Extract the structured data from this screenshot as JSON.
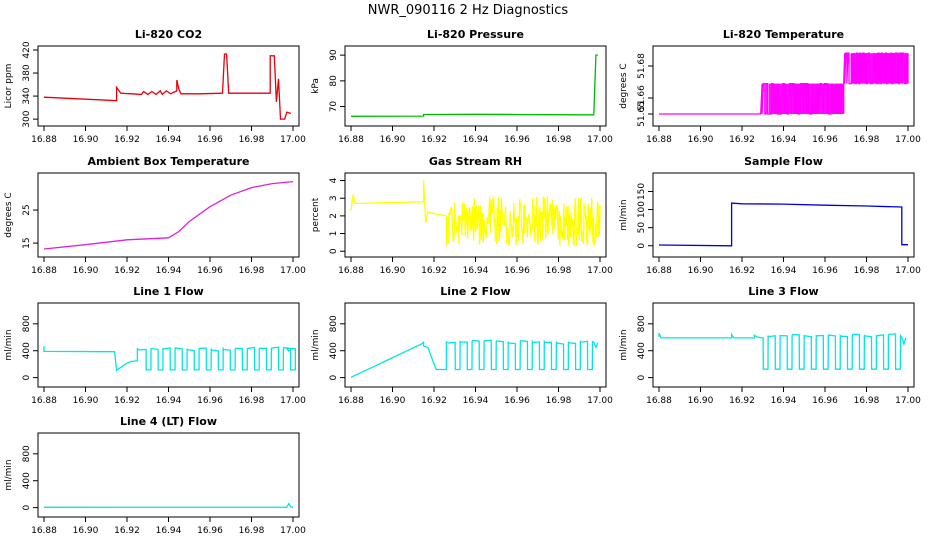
{
  "figure_title": "NWR_090116  2 Hz Diagnostics",
  "chart_data": [
    {
      "type": "line",
      "title": "Li-820 CO2",
      "xlabel": "",
      "ylabel": "Licor ppm",
      "color": "#e8000b",
      "xlim": [
        16.88,
        17.0
      ],
      "ylim": [
        295,
        420
      ],
      "xticks": [
        16.88,
        16.9,
        16.92,
        16.94,
        16.96,
        16.98,
        17.0
      ],
      "xtick_labels": [
        "16.88",
        "16.90",
        "16.92",
        "16.94",
        "16.96",
        "16.98",
        "17.00"
      ],
      "yticks": [
        300,
        340,
        380,
        420
      ],
      "ytick_labels": [
        "300",
        "340",
        "380",
        "420"
      ],
      "series": [
        {
          "name": "CO2",
          "points": [
            [
              16.88,
              338
            ],
            [
              16.915,
              332
            ],
            [
              16.915,
              355
            ],
            [
              16.917,
              345
            ],
            [
              16.927,
              343
            ],
            [
              16.928,
              348
            ],
            [
              16.93,
              343
            ],
            [
              16.932,
              348
            ],
            [
              16.934,
              343
            ],
            [
              16.936,
              349
            ],
            [
              16.937,
              343
            ],
            [
              16.939,
              349
            ],
            [
              16.941,
              344
            ],
            [
              16.944,
              349
            ],
            [
              16.944,
              368
            ],
            [
              16.945,
              352
            ],
            [
              16.946,
              344
            ],
            [
              16.955,
              344
            ],
            [
              16.966,
              345
            ],
            [
              16.967,
              413
            ],
            [
              16.968,
              413
            ],
            [
              16.969,
              345
            ],
            [
              16.989,
              345
            ],
            [
              16.989,
              410
            ],
            [
              16.991,
              410
            ],
            [
              16.992,
              330
            ],
            [
              16.993,
              370
            ],
            [
              16.994,
              300
            ],
            [
              16.996,
              300
            ],
            [
              16.997,
              312
            ],
            [
              16.999,
              310
            ]
          ]
        }
      ]
    },
    {
      "type": "line",
      "title": "Li-820 Pressure",
      "xlabel": "",
      "ylabel": "kPa",
      "color": "#00bb00",
      "xlim": [
        16.88,
        17.0
      ],
      "ylim": [
        64,
        92
      ],
      "xticks": [
        16.88,
        16.9,
        16.92,
        16.94,
        16.96,
        16.98,
        17.0
      ],
      "xtick_labels": [
        "16.88",
        "16.90",
        "16.92",
        "16.94",
        "16.96",
        "16.98",
        "17.00"
      ],
      "yticks": [
        70,
        80,
        90
      ],
      "ytick_labels": [
        "70",
        "80",
        "90"
      ],
      "series": [
        {
          "name": "Pressure",
          "points": [
            [
              16.88,
              66.2
            ],
            [
              16.915,
              66.3
            ],
            [
              16.915,
              66.9
            ],
            [
              16.94,
              67.0
            ],
            [
              16.96,
              66.9
            ],
            [
              16.99,
              66.8
            ],
            [
              16.997,
              66.8
            ],
            [
              16.998,
              90
            ],
            [
              16.999,
              90
            ]
          ]
        }
      ]
    },
    {
      "type": "line",
      "title": "Li-820 Temperature",
      "xlabel": "",
      "ylabel": "degrees C",
      "color": "#ff00ff",
      "xlim": [
        16.88,
        17.0
      ],
      "ylim": [
        51.645,
        51.69
      ],
      "xticks": [
        16.88,
        16.9,
        16.92,
        16.94,
        16.96,
        16.98,
        17.0
      ],
      "xtick_labels": [
        "16.88",
        "16.90",
        "16.92",
        "16.94",
        "16.96",
        "16.98",
        "17.00"
      ],
      "yticks": [
        51.65,
        51.66,
        51.68
      ],
      "ytick_labels": [
        "51.65",
        "51.66",
        "51.68"
      ],
      "series": [
        {
          "name": "Temp",
          "levels": [
            51.65,
            51.669,
            51.688
          ],
          "segments": [
            [
              16.88,
              16.929,
              0
            ],
            [
              16.929,
              16.969,
              1
            ],
            [
              16.969,
              17.0,
              2
            ]
          ]
        }
      ]
    },
    {
      "type": "line",
      "title": "Ambient Box Temperature",
      "xlabel": "",
      "ylabel": "degrees C",
      "color": "#dd22dd",
      "xlim": [
        16.88,
        17.0
      ],
      "ylim": [
        12,
        35
      ],
      "xticks": [
        16.88,
        16.9,
        16.92,
        16.94,
        16.96,
        16.98,
        17.0
      ],
      "xtick_labels": [
        "16.88",
        "16.90",
        "16.92",
        "16.94",
        "16.96",
        "16.98",
        "17.00"
      ],
      "yticks": [
        15,
        25
      ],
      "ytick_labels": [
        "15",
        "25"
      ],
      "series": [
        {
          "name": "Box Temp",
          "points": [
            [
              16.88,
              13.2
            ],
            [
              16.9,
              14.5
            ],
            [
              16.92,
              16.0
            ],
            [
              16.94,
              16.6
            ],
            [
              16.945,
              18.5
            ],
            [
              16.95,
              21.5
            ],
            [
              16.96,
              26.0
            ],
            [
              16.97,
              29.5
            ],
            [
              16.98,
              31.8
            ],
            [
              16.99,
              33.0
            ],
            [
              17.0,
              33.6
            ]
          ]
        }
      ]
    },
    {
      "type": "line",
      "title": "Gas Stream RH",
      "xlabel": "",
      "ylabel": "percent",
      "color": "#ffff00",
      "xlim": [
        16.88,
        17.0
      ],
      "ylim": [
        -0.1,
        4.2
      ],
      "xticks": [
        16.88,
        16.9,
        16.92,
        16.94,
        16.96,
        16.98,
        17.0
      ],
      "xtick_labels": [
        "16.88",
        "16.90",
        "16.92",
        "16.94",
        "16.96",
        "16.98",
        "17.00"
      ],
      "yticks": [
        0,
        1,
        2,
        3,
        4
      ],
      "ytick_labels": [
        "0",
        "1",
        "2",
        "3",
        "4"
      ],
      "series": [
        {
          "name": "RH",
          "points": [
            [
              16.88,
              2.3
            ],
            [
              16.881,
              3.2
            ],
            [
              16.882,
              2.7
            ],
            [
              16.915,
              2.8
            ],
            [
              16.915,
              4.0
            ],
            [
              16.916,
              1.6
            ],
            [
              16.917,
              2.2
            ],
            [
              16.926,
              2.0
            ]
          ],
          "noise": {
            "from": 16.926,
            "to": 17.0,
            "center": 1.7,
            "amplitude": 1.4
          }
        }
      ]
    },
    {
      "type": "line",
      "title": "Sample Flow",
      "xlabel": "",
      "ylabel": "ml/min",
      "color": "#0000dd",
      "xlim": [
        16.88,
        17.0
      ],
      "ylim": [
        -20,
        190
      ],
      "xticks": [
        16.88,
        16.9,
        16.92,
        16.94,
        16.96,
        16.98,
        17.0
      ],
      "xtick_labels": [
        "16.88",
        "16.90",
        "16.92",
        "16.94",
        "16.96",
        "16.98",
        "17.00"
      ],
      "yticks": [
        0,
        50,
        100,
        150
      ],
      "ytick_labels": [
        "0",
        "50",
        "100",
        "150"
      ],
      "series": [
        {
          "name": "Sample Flow",
          "points": [
            [
              16.88,
              2
            ],
            [
              16.915,
              0
            ],
            [
              16.915,
              118
            ],
            [
              16.92,
              116
            ],
            [
              16.94,
              115
            ],
            [
              16.96,
              112
            ],
            [
              16.98,
              110
            ],
            [
              16.997,
              107
            ],
            [
              16.997,
              3
            ],
            [
              17.0,
              3
            ]
          ]
        }
      ]
    },
    {
      "type": "line",
      "title": "Line 1 Flow",
      "xlabel": "",
      "ylabel": "ml/min",
      "color": "#00e5e5",
      "xlim": [
        16.88,
        17.0
      ],
      "ylim": [
        -80,
        1050
      ],
      "xticks": [
        16.88,
        16.9,
        16.92,
        16.94,
        16.96,
        16.98,
        17.0
      ],
      "xtick_labels": [
        "16.88",
        "16.90",
        "16.92",
        "16.94",
        "16.96",
        "16.98",
        "17.00"
      ],
      "yticks": [
        0,
        400,
        800
      ],
      "ytick_labels": [
        "0",
        "400",
        "800"
      ],
      "series": [
        {
          "name": "Line 1",
          "points": [
            [
              16.88,
              470
            ],
            [
              16.88,
              390
            ],
            [
              16.914,
              385
            ],
            [
              16.915,
              110
            ],
            [
              16.92,
              215
            ],
            [
              16.922,
              240
            ],
            [
              16.925,
              250
            ],
            [
              16.925,
              430
            ]
          ],
          "square_wave": {
            "from": 16.926,
            "to": 16.996,
            "high": 430,
            "low": 115,
            "period": 0.0058
          },
          "tail": [
            [
              16.997,
              430
            ],
            [
              16.998,
              395
            ],
            [
              17.0,
              440
            ]
          ]
        }
      ]
    },
    {
      "type": "line",
      "title": "Line 2 Flow",
      "xlabel": "",
      "ylabel": "ml/min",
      "color": "#00e5e5",
      "xlim": [
        16.88,
        17.0
      ],
      "ylim": [
        -80,
        1050
      ],
      "xticks": [
        16.88,
        16.9,
        16.92,
        16.94,
        16.96,
        16.98,
        17.0
      ],
      "xtick_labels": [
        "16.88",
        "16.90",
        "16.92",
        "16.94",
        "16.96",
        "16.98",
        "17.00"
      ],
      "yticks": [
        0,
        400,
        800
      ],
      "ytick_labels": [
        "0",
        "400",
        "800"
      ],
      "series": [
        {
          "name": "Line 2",
          "points": [
            [
              16.88,
              5
            ],
            [
              16.914,
              500
            ],
            [
              16.915,
              525
            ],
            [
              16.915,
              470
            ],
            [
              16.917,
              450
            ],
            [
              16.921,
              120
            ],
            [
              16.926,
              120
            ],
            [
              16.926,
              530
            ]
          ],
          "square_wave": {
            "from": 16.927,
            "to": 16.996,
            "high": 535,
            "low": 120,
            "period": 0.0058
          },
          "tail": [
            [
              16.997,
              530
            ],
            [
              16.998,
              450
            ],
            [
              16.999,
              520
            ]
          ]
        }
      ]
    },
    {
      "type": "line",
      "title": "Line 3 Flow",
      "xlabel": "",
      "ylabel": "ml/min",
      "color": "#00e5e5",
      "xlim": [
        16.88,
        17.0
      ],
      "ylim": [
        -80,
        1050
      ],
      "xticks": [
        16.88,
        16.9,
        16.92,
        16.94,
        16.96,
        16.98,
        17.0
      ],
      "xtick_labels": [
        "16.88",
        "16.90",
        "16.92",
        "16.94",
        "16.96",
        "16.98",
        "17.00"
      ],
      "yticks": [
        0,
        400,
        800
      ],
      "ytick_labels": [
        "0",
        "400",
        "800"
      ],
      "series": [
        {
          "name": "Line 3",
          "points": [
            [
              16.88,
              610
            ],
            [
              16.88,
              660
            ],
            [
              16.881,
              590
            ],
            [
              16.915,
              590
            ],
            [
              16.915,
              640
            ],
            [
              16.916,
              590
            ],
            [
              16.926,
              590
            ],
            [
              16.926,
              630
            ]
          ],
          "square_wave": {
            "from": 16.927,
            "to": 16.996,
            "high": 625,
            "low": 125,
            "period": 0.0058
          },
          "tail": [
            [
              16.997,
              600
            ],
            [
              16.998,
              500
            ],
            [
              16.999,
              590
            ]
          ]
        }
      ]
    },
    {
      "type": "line",
      "title": "Line 4 (LT) Flow",
      "xlabel": "",
      "ylabel": "ml/min",
      "color": "#00e5e5",
      "xlim": [
        16.88,
        17.0
      ],
      "ylim": [
        -80,
        1050
      ],
      "xticks": [
        16.88,
        16.9,
        16.92,
        16.94,
        16.96,
        16.98,
        17.0
      ],
      "xtick_labels": [
        "16.88",
        "16.90",
        "16.92",
        "16.94",
        "16.96",
        "16.98",
        "17.00"
      ],
      "yticks": [
        0,
        400,
        800
      ],
      "ytick_labels": [
        "0",
        "400",
        "800"
      ],
      "series": [
        {
          "name": "Line 4",
          "points": [
            [
              16.88,
              5
            ],
            [
              16.997,
              6
            ],
            [
              16.998,
              60
            ],
            [
              16.999,
              8
            ],
            [
              17.0,
              8
            ]
          ]
        }
      ]
    }
  ]
}
